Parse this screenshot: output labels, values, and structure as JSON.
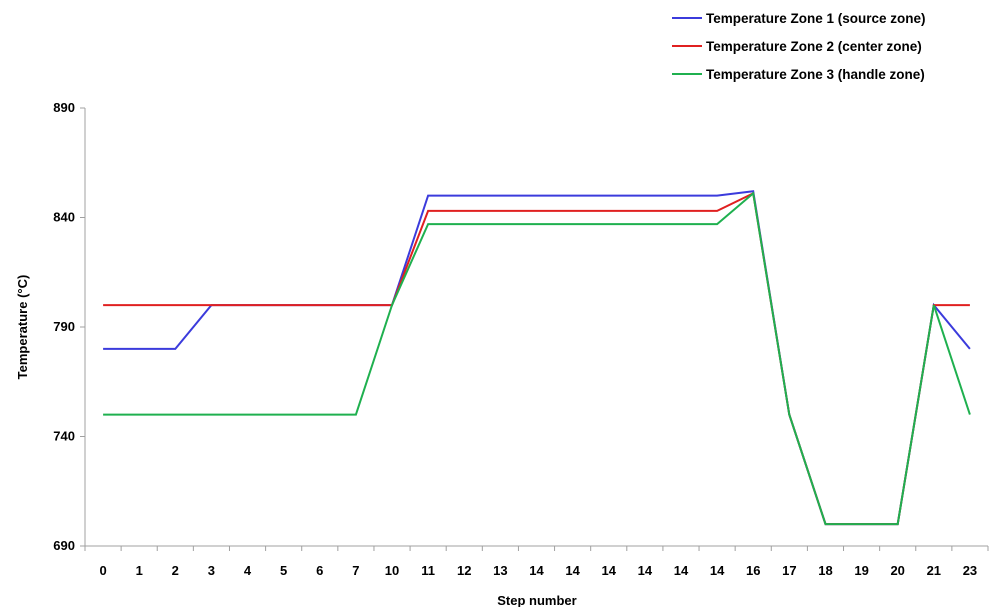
{
  "chart_data": {
    "type": "line",
    "xlabel": "Step number",
    "ylabel": "Temperature (°C)",
    "ylim": [
      690,
      890
    ],
    "yticks": [
      690,
      740,
      790,
      840,
      890
    ],
    "categories": [
      "0",
      "1",
      "2",
      "3",
      "4",
      "5",
      "6",
      "7",
      "10",
      "11",
      "12",
      "13",
      "14",
      "14",
      "14",
      "14",
      "14",
      "14",
      "16",
      "17",
      "18",
      "19",
      "20",
      "21",
      "23"
    ],
    "grid": false,
    "legend_position": "top-right",
    "series": [
      {
        "name": "Temperature Zone 1 (source zone)",
        "color": "#3b3bdc",
        "values": [
          780,
          780,
          780,
          800,
          800,
          800,
          800,
          800,
          800,
          850,
          850,
          850,
          850,
          850,
          850,
          850,
          850,
          850,
          852,
          750,
          700,
          700,
          700,
          800,
          780
        ]
      },
      {
        "name": "Temperature Zone 2 (center zone)",
        "color": "#e02020",
        "values": [
          800,
          800,
          800,
          800,
          800,
          800,
          800,
          800,
          800,
          843,
          843,
          843,
          843,
          843,
          843,
          843,
          843,
          843,
          851,
          750,
          700,
          700,
          700,
          800,
          800
        ]
      },
      {
        "name": "Temperature Zone 3 (handle zone)",
        "color": "#1fb04f",
        "values": [
          750,
          750,
          750,
          750,
          750,
          750,
          750,
          750,
          800,
          837,
          837,
          837,
          837,
          837,
          837,
          837,
          837,
          837,
          851,
          750,
          700,
          700,
          700,
          800,
          750
        ]
      }
    ]
  }
}
